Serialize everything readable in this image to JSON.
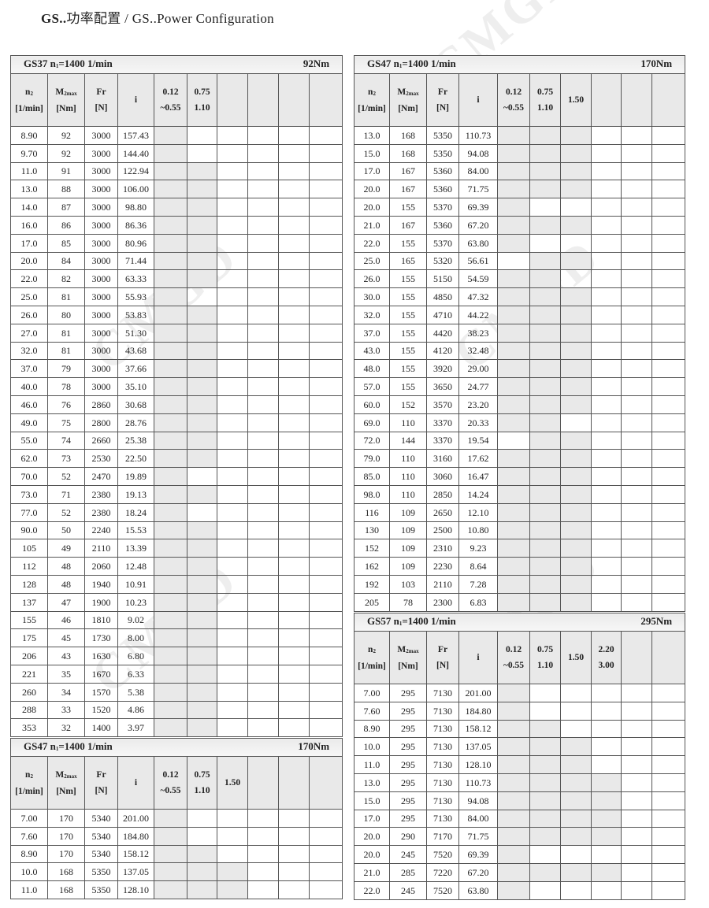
{
  "page": {
    "title_bold": "GS..",
    "title_cn": "功率配置",
    "title_sep": " / ",
    "title_en": "GS..Power Configuration"
  },
  "watermark": "CMGD",
  "header": {
    "n2": {
      "main": "n",
      "sub": "2",
      "unit": "[1/min]"
    },
    "m2max": {
      "main": "M",
      "sub": "2max",
      "unit": "[Nm]"
    },
    "fr": {
      "main": "Fr",
      "unit": "[N]"
    },
    "i": "i"
  },
  "shade_color": "#e9e9e9",
  "tables": [
    {
      "model": "GS37",
      "n1_label": "n",
      "n1_sub": "1",
      "n1_value": "=1400 1/min",
      "torque": "92Nm",
      "power_cols": [
        [
          "0.12",
          "~0.55"
        ],
        [
          "0.75",
          "1.10"
        ]
      ],
      "rows": [
        [
          "8.90",
          "92",
          "3000",
          "157.43",
          "10"
        ],
        [
          "9.70",
          "92",
          "3000",
          "144.40",
          "10"
        ],
        [
          "11.0",
          "91",
          "3000",
          "122.94",
          "11"
        ],
        [
          "13.0",
          "88",
          "3000",
          "106.00",
          "11"
        ],
        [
          "14.0",
          "87",
          "3000",
          "98.80",
          "11"
        ],
        [
          "16.0",
          "86",
          "3000",
          "86.36",
          "11"
        ],
        [
          "17.0",
          "85",
          "3000",
          "80.96",
          "11"
        ],
        [
          "20.0",
          "84",
          "3000",
          "71.44",
          "11"
        ],
        [
          "22.0",
          "82",
          "3000",
          "63.33",
          "11"
        ],
        [
          "25.0",
          "81",
          "3000",
          "55.93",
          "10"
        ],
        [
          "26.0",
          "80",
          "3000",
          "53.83",
          "11"
        ],
        [
          "27.0",
          "81",
          "3000",
          "51.30",
          "11"
        ],
        [
          "32.0",
          "81",
          "3000",
          "43.68",
          "11"
        ],
        [
          "37.0",
          "79",
          "3000",
          "37.66",
          "11"
        ],
        [
          "40.0",
          "78",
          "3000",
          "35.10",
          "11"
        ],
        [
          "46.0",
          "76",
          "2860",
          "30.68",
          "11"
        ],
        [
          "49.0",
          "75",
          "2800",
          "28.76",
          "11"
        ],
        [
          "55.0",
          "74",
          "2660",
          "25.38",
          "11"
        ],
        [
          "62.0",
          "73",
          "2530",
          "22.50",
          "11"
        ],
        [
          "70.0",
          "52",
          "2470",
          "19.89",
          "10"
        ],
        [
          "73.0",
          "71",
          "2380",
          "19.13",
          "11"
        ],
        [
          "77.0",
          "52",
          "2380",
          "18.24",
          "10"
        ],
        [
          "90.0",
          "50",
          "2240",
          "15.53",
          "11"
        ],
        [
          "105",
          "49",
          "2110",
          "13.39",
          "11"
        ],
        [
          "112",
          "48",
          "2060",
          "12.48",
          "11"
        ],
        [
          "128",
          "48",
          "1940",
          "10.91",
          "11"
        ],
        [
          "137",
          "47",
          "1900",
          "10.23",
          "11"
        ],
        [
          "155",
          "46",
          "1810",
          "9.02",
          "11"
        ],
        [
          "175",
          "45",
          "1730",
          "8.00",
          "11"
        ],
        [
          "206",
          "43",
          "1630",
          "6.80",
          "11"
        ],
        [
          "221",
          "35",
          "1670",
          "6.33",
          "11"
        ],
        [
          "260",
          "34",
          "1570",
          "5.38",
          "11"
        ],
        [
          "288",
          "33",
          "1520",
          "4.86",
          "11"
        ],
        [
          "353",
          "32",
          "1400",
          "3.97",
          "11"
        ]
      ]
    },
    {
      "model": "GS47",
      "n1_label": "n",
      "n1_sub": "1",
      "n1_value": "=1400 1/min",
      "torque": "170Nm",
      "power_cols": [
        [
          "0.12",
          "~0.55"
        ],
        [
          "0.75",
          "1.10"
        ],
        [
          "1.50"
        ]
      ],
      "rows": [
        [
          "7.00",
          "170",
          "5340",
          "201.00",
          "100"
        ],
        [
          "7.60",
          "170",
          "5340",
          "184.80",
          "100"
        ],
        [
          "8.90",
          "170",
          "5340",
          "158.12",
          "110"
        ],
        [
          "10.0",
          "168",
          "5350",
          "137.05",
          "111"
        ],
        [
          "11.0",
          "168",
          "5350",
          "128.10",
          "111"
        ]
      ]
    },
    {
      "model": "GS47",
      "n1_label": "n",
      "n1_sub": "1",
      "n1_value": "=1400 1/min",
      "torque": "170Nm",
      "power_cols": [
        [
          "0.12",
          "~0.55"
        ],
        [
          "0.75",
          "1.10"
        ],
        [
          "1.50"
        ]
      ],
      "rows": [
        [
          "13.0",
          "168",
          "5350",
          "110.73",
          "111"
        ],
        [
          "15.0",
          "168",
          "5350",
          "94.08",
          "111"
        ],
        [
          "17.0",
          "167",
          "5360",
          "84.00",
          "111"
        ],
        [
          "20.0",
          "167",
          "5360",
          "71.75",
          "111"
        ],
        [
          "20.0",
          "155",
          "5370",
          "69.39",
          "100"
        ],
        [
          "21.0",
          "167",
          "5360",
          "67.20",
          "111"
        ],
        [
          "22.0",
          "155",
          "5370",
          "63.80",
          "100"
        ],
        [
          "25.0",
          "165",
          "5320",
          "56.61",
          "011"
        ],
        [
          "26.0",
          "155",
          "5150",
          "54.59",
          "110"
        ],
        [
          "30.0",
          "155",
          "4850",
          "47.32",
          "111"
        ],
        [
          "32.0",
          "155",
          "4710",
          "44.22",
          "111"
        ],
        [
          "37.0",
          "155",
          "4420",
          "38.23",
          "111"
        ],
        [
          "43.0",
          "155",
          "4120",
          "32.48",
          "111"
        ],
        [
          "48.0",
          "155",
          "3920",
          "29.00",
          "111"
        ],
        [
          "57.0",
          "155",
          "3650",
          "24.77",
          "111"
        ],
        [
          "60.0",
          "152",
          "3570",
          "23.20",
          "111"
        ],
        [
          "69.0",
          "110",
          "3370",
          "20.33",
          "110"
        ],
        [
          "72.0",
          "144",
          "3370",
          "19.54",
          "011"
        ],
        [
          "79.0",
          "110",
          "3160",
          "17.62",
          "111"
        ],
        [
          "85.0",
          "110",
          "3060",
          "16.47",
          "111"
        ],
        [
          "98.0",
          "110",
          "2850",
          "14.24",
          "111"
        ],
        [
          "116",
          "109",
          "2650",
          "12.10",
          "111"
        ],
        [
          "130",
          "109",
          "2500",
          "10.80",
          "111"
        ],
        [
          "152",
          "109",
          "2310",
          "9.23",
          "111"
        ],
        [
          "162",
          "109",
          "2230",
          "8.64",
          "111"
        ],
        [
          "192",
          "103",
          "2110",
          "7.28",
          "111"
        ],
        [
          "205",
          "78",
          "2300",
          "6.83",
          "111"
        ]
      ]
    },
    {
      "model": "GS57",
      "n1_label": "n",
      "n1_sub": "1",
      "n1_value": "=1400 1/min",
      "torque": "295Nm",
      "power_cols": [
        [
          "0.12",
          "~0.55"
        ],
        [
          "0.75",
          "1.10"
        ],
        [
          "1.50"
        ],
        [
          "2.20",
          "3.00"
        ]
      ],
      "rows": [
        [
          "7.00",
          "295",
          "7130",
          "201.00",
          "1000"
        ],
        [
          "7.60",
          "295",
          "7130",
          "184.80",
          "1000"
        ],
        [
          "8.90",
          "295",
          "7130",
          "158.12",
          "1100"
        ],
        [
          "10.0",
          "295",
          "7130",
          "137.05",
          "1110"
        ],
        [
          "11.0",
          "295",
          "7130",
          "128.10",
          "1110"
        ],
        [
          "13.0",
          "295",
          "7130",
          "110.73",
          "1111"
        ],
        [
          "15.0",
          "295",
          "7130",
          "94.08",
          "1111"
        ],
        [
          "17.0",
          "295",
          "7130",
          "84.00",
          "1111"
        ],
        [
          "20.0",
          "290",
          "7170",
          "71.75",
          "1111"
        ],
        [
          "20.0",
          "245",
          "7520",
          "69.39",
          "1000"
        ],
        [
          "21.0",
          "285",
          "7220",
          "67.20",
          "1111"
        ],
        [
          "22.0",
          "245",
          "7520",
          "63.80",
          "1000"
        ]
      ]
    }
  ]
}
